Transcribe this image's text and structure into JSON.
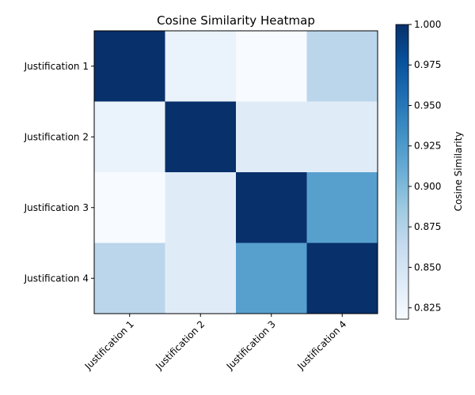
{
  "chart_data": {
    "type": "heatmap",
    "title": "Cosine Similarity Heatmap",
    "rows": [
      "Justification 1",
      "Justification 2",
      "Justification 3",
      "Justification 4"
    ],
    "columns": [
      "Justification 1",
      "Justification 2",
      "Justification 3",
      "Justification 4"
    ],
    "values": [
      [
        1.0,
        0.83,
        0.818,
        0.87
      ],
      [
        0.83,
        1.0,
        0.84,
        0.84
      ],
      [
        0.818,
        0.84,
        1.0,
        0.92
      ],
      [
        0.87,
        0.84,
        0.92,
        1.0
      ]
    ],
    "colormap": "Blues",
    "colorbar": {
      "label": "Cosine Similarity",
      "range": [
        0.818,
        1.0
      ],
      "ticks": [
        "1.000",
        "0.975",
        "0.950",
        "0.925",
        "0.900",
        "0.875",
        "0.850",
        "0.825"
      ]
    }
  }
}
